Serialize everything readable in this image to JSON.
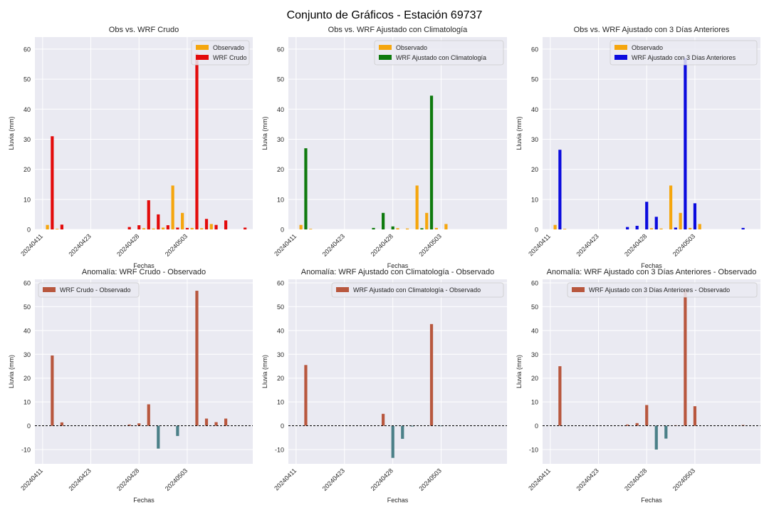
{
  "figure": {
    "title": "Conjunto de Gráficos - Estación 69737"
  },
  "colors": {
    "observed": "#f5a60e",
    "raw": "#e30b0b",
    "clim": "#0e7a0e",
    "prev": "#0b0bde",
    "anom_pos": "#b8573e",
    "anom_neg": "#4b8088"
  },
  "chart_data": [
    {
      "type": "bar",
      "title": "Obs vs. WRF Crudo",
      "xlabel": "Fechas",
      "ylabel": "Lluvia (mm)",
      "ylim": [
        0,
        64
      ],
      "yticks": [
        0,
        10,
        20,
        30,
        40,
        50,
        60
      ],
      "xticks": [
        "20240411",
        "20240423",
        "20240428",
        "20240503"
      ],
      "grid": true,
      "legend": "top-right",
      "series": [
        {
          "name": "Observado",
          "color": "observed",
          "points": [
            [
              0.5,
              1.5
            ],
            [
              1.5,
              0.2
            ],
            [
              10.5,
              0.4
            ],
            [
              11.5,
              0.3
            ],
            [
              12.5,
              0.6
            ],
            [
              13.5,
              14.6
            ],
            [
              14.5,
              5.5
            ],
            [
              15.5,
              0.5
            ],
            [
              16.5,
              0.4
            ],
            [
              17.5,
              1.8
            ]
          ]
        },
        {
          "name": "WRF Crudo",
          "color": "raw",
          "points": [
            [
              1,
              31
            ],
            [
              2,
              1.6
            ],
            [
              9,
              0.8
            ],
            [
              10,
              1.4
            ],
            [
              11,
              9.7
            ],
            [
              12,
              5
            ],
            [
              13,
              1.4
            ],
            [
              14,
              0.6
            ],
            [
              15,
              0.5
            ],
            [
              16,
              58.5
            ],
            [
              17,
              3.5
            ],
            [
              18,
              1.5
            ],
            [
              19,
              3
            ],
            [
              21,
              0.6
            ]
          ]
        }
      ]
    },
    {
      "type": "bar",
      "title": "Obs vs. WRF Ajustado con Climatología",
      "xlabel": "Fechas",
      "ylabel": "Lluvia (mm)",
      "ylim": [
        0,
        64
      ],
      "yticks": [
        0,
        10,
        20,
        30,
        40,
        50,
        60
      ],
      "xticks": [
        "20240411",
        "20240423",
        "20240428",
        "20240503"
      ],
      "grid": true,
      "legend": "top-right",
      "series": [
        {
          "name": "Observado",
          "color": "observed",
          "points": [
            [
              0.5,
              1.5
            ],
            [
              1.5,
              0.2
            ],
            [
              10.5,
              0.4
            ],
            [
              11.5,
              0.3
            ],
            [
              12.5,
              14.6
            ],
            [
              13.5,
              5.5
            ],
            [
              14.5,
              0.5
            ],
            [
              15.5,
              1.8
            ]
          ]
        },
        {
          "name": "WRF Ajustado con Climatología",
          "color": "clim",
          "points": [
            [
              1,
              27
            ],
            [
              8,
              0.5
            ],
            [
              9,
              5.5
            ],
            [
              10,
              1
            ],
            [
              13,
              0.4
            ],
            [
              14,
              44.5
            ]
          ]
        }
      ]
    },
    {
      "type": "bar",
      "title": "Obs vs. WRF Ajustado con 3 Días Anteriores",
      "xlabel": "Fechas",
      "ylabel": "Lluvia (mm)",
      "ylim": [
        0,
        64
      ],
      "yticks": [
        0,
        10,
        20,
        30,
        40,
        50,
        60
      ],
      "xticks": [
        "20240411",
        "20240423",
        "20240428",
        "20240503"
      ],
      "grid": true,
      "legend": "top-right",
      "series": [
        {
          "name": "Observado",
          "color": "observed",
          "points": [
            [
              0.5,
              1.5
            ],
            [
              1.5,
              0.2
            ],
            [
              10.5,
              0.4
            ],
            [
              11.5,
              0.3
            ],
            [
              12.5,
              14.6
            ],
            [
              13.5,
              5.5
            ],
            [
              14.5,
              0.5
            ],
            [
              15.5,
              1.8
            ]
          ]
        },
        {
          "name": "WRF Ajustado con 3 Días Anteriores",
          "color": "prev",
          "points": [
            [
              1,
              26.5
            ],
            [
              8,
              0.8
            ],
            [
              9,
              1.2
            ],
            [
              10,
              9.2
            ],
            [
              11,
              4.2
            ],
            [
              13,
              0.6
            ],
            [
              14,
              57
            ],
            [
              15,
              8.7
            ],
            [
              20,
              0.5
            ]
          ]
        }
      ]
    },
    {
      "type": "bar",
      "title": "Anomalía: WRF Crudo - Observado",
      "xlabel": "Fechas",
      "ylabel": "Lluvia (mm)",
      "ylim": [
        -16,
        61.5
      ],
      "yticks": [
        -10,
        0,
        10,
        20,
        30,
        40,
        50,
        60
      ],
      "xticks": [
        "20240411",
        "20240423",
        "20240428",
        "20240503"
      ],
      "grid": true,
      "zero_line": true,
      "legend": "top-left",
      "series": [
        {
          "name": "WRF Crudo - Observado",
          "color": "anom_pos",
          "points": [
            [
              1,
              29.5
            ],
            [
              2,
              1.4
            ],
            [
              9,
              0.5
            ],
            [
              10,
              1
            ],
            [
              11,
              9
            ],
            [
              12,
              -9.6
            ],
            [
              14,
              -4.3
            ],
            [
              16,
              56.7
            ],
            [
              17,
              3
            ],
            [
              18,
              1.5
            ],
            [
              19,
              3
            ]
          ]
        }
      ]
    },
    {
      "type": "bar",
      "title": "Anomalía: WRF Ajustado con Climatología - Observado",
      "xlabel": "Fechas",
      "ylabel": "Lluvia (mm)",
      "ylim": [
        -16,
        61.5
      ],
      "yticks": [
        -10,
        0,
        10,
        20,
        30,
        40,
        50,
        60
      ],
      "xticks": [
        "20240411",
        "20240423",
        "20240428",
        "20240503"
      ],
      "grid": true,
      "zero_line": true,
      "legend": "top-right",
      "series": [
        {
          "name": "WRF Ajustado con Climatología - Observado",
          "color": "anom_pos",
          "points": [
            [
              1,
              25.5
            ],
            [
              9,
              5
            ],
            [
              10,
              -13.5
            ],
            [
              11,
              -5.5
            ],
            [
              12,
              -0.3
            ],
            [
              14,
              42.7
            ],
            [
              15,
              -0.2
            ]
          ]
        }
      ]
    },
    {
      "type": "bar",
      "title": "Anomalía: WRF Ajustado con 3 Días Anteriores - Observado",
      "xlabel": "Fechas",
      "ylabel": "Lluvia (mm)",
      "ylim": [
        -16,
        61.5
      ],
      "yticks": [
        -10,
        0,
        10,
        20,
        30,
        40,
        50,
        60
      ],
      "xticks": [
        "20240411",
        "20240423",
        "20240428",
        "20240503"
      ],
      "grid": true,
      "zero_line": true,
      "legend": "top-right",
      "series": [
        {
          "name": "WRF Ajustado con 3 Días Anteriores - Observado",
          "color": "anom_pos",
          "points": [
            [
              1,
              25
            ],
            [
              8,
              0.5
            ],
            [
              9,
              1.1
            ],
            [
              10,
              8.7
            ],
            [
              11,
              -10
            ],
            [
              12,
              -5.4
            ],
            [
              13,
              0.2
            ],
            [
              14,
              57
            ],
            [
              15,
              8.2
            ],
            [
              20,
              0.3
            ]
          ]
        }
      ]
    }
  ]
}
